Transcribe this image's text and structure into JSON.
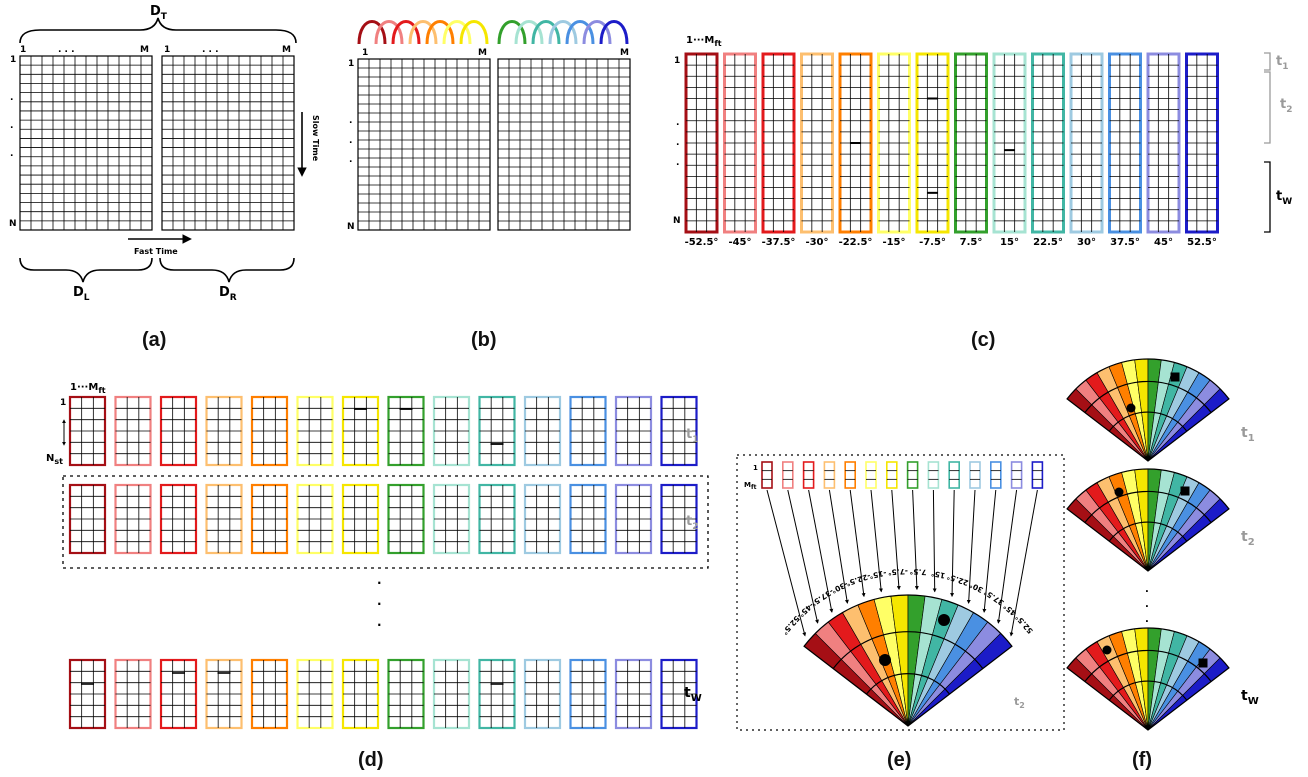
{
  "colors": {
    "beams": [
      "#a50f15",
      "#f08080",
      "#e31a1c",
      "#fdbf6f",
      "#ff7f00",
      "#ffff66",
      "#f5e600",
      "#33a02c",
      "#a6e3d2",
      "#41b6a4",
      "#9ecae1",
      "#4a90e2",
      "#8c8ce0",
      "#1c1cc8"
    ],
    "gray": "#9a9a9a"
  },
  "panel_a": {
    "caption": "(a)",
    "dt_label": "D",
    "dt_sub": "T",
    "dl_label": "D",
    "dl_sub": "L",
    "dr_label": "D",
    "dr_sub": "R",
    "col_first": "1",
    "col_dots": ". . .",
    "col_last": "M",
    "row_first": "1",
    "row_last": "N",
    "slow_time": "Slow Time",
    "fast_time": "Fast Time"
  },
  "panel_b": {
    "caption": "(b)",
    "col_first": "1",
    "col_last": "M",
    "row_first": "1",
    "row_last": "N"
  },
  "panel_c": {
    "caption": "(c)",
    "header": "1···M",
    "header_sub": "ft",
    "row_first": "1",
    "row_last": "N",
    "angles": [
      "-52.5°",
      "-45°",
      "-37.5°",
      "-30°",
      "-22.5°",
      "-15°",
      "-7.5°",
      "7.5°",
      "15°",
      "22.5°",
      "30°",
      "37.5°",
      "45°",
      "52.5°"
    ],
    "t1": "t",
    "t1_sub": "1",
    "t2": "t",
    "t2_sub": "2",
    "tw": "t",
    "tw_sub": "W"
  },
  "panel_d": {
    "caption": "(d)",
    "header": "1···M",
    "header_sub": "ft",
    "row_first": "1",
    "nst": "N",
    "nst_sub": "st",
    "t1": "t",
    "t1_sub": "1",
    "t2": "t",
    "t2_sub": "2",
    "tw": "t",
    "tw_sub": "W"
  },
  "panel_e": {
    "caption": "(e)",
    "row_first": "1",
    "mft": "M",
    "mft_sub": "ft",
    "t2": "t",
    "t2_sub": "2",
    "angles": [
      "-52.5°",
      "-45°",
      "-37.5°",
      "-30°",
      "-22.5°",
      "-15°",
      "-7.5°",
      "7.5°",
      "15°",
      "22.5°",
      "30°",
      "37.5°",
      "45°",
      "52.5°"
    ]
  },
  "panel_f": {
    "caption": "(f)",
    "t1": "t",
    "t1_sub": "1",
    "t2": "t",
    "t2_sub": "2",
    "tw": "t",
    "tw_sub": "W"
  }
}
